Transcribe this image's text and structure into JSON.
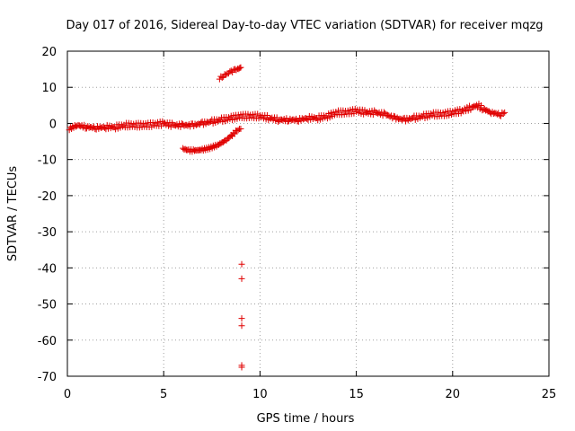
{
  "chart_data": {
    "type": "scatter",
    "title": "Day 017 of 2016, Sidereal Day-to-day VTEC variation (SDTVAR) for receiver mqzg",
    "xlabel": "GPS time / hours",
    "ylabel": "SDTVAR / TECUs",
    "xlim": [
      0,
      25
    ],
    "ylim": [
      -70,
      20
    ],
    "xticks": [
      0,
      5,
      10,
      15,
      20,
      25
    ],
    "yticks": [
      -70,
      -60,
      -50,
      -40,
      -30,
      -20,
      -10,
      0,
      10,
      20
    ],
    "xtick_labels": [
      "0",
      "5",
      "10",
      "15",
      "20",
      "25"
    ],
    "ytick_labels": [
      "-70",
      "-60",
      "-50",
      "-40",
      "-30",
      "-20",
      "-10",
      "0",
      "10",
      "20"
    ],
    "grid": true,
    "marker_color": "#e00000",
    "series": [
      {
        "name": "main-trace",
        "x": [
          0.1,
          0.5,
          1.0,
          1.5,
          2.0,
          2.5,
          3.0,
          3.5,
          4.0,
          4.5,
          5.0,
          5.5,
          6.0,
          6.5,
          7.0,
          7.5,
          8.0,
          8.5,
          9.0,
          9.5,
          10.0,
          10.5,
          11.0,
          11.5,
          12.0,
          12.5,
          13.0,
          13.5,
          14.0,
          14.5,
          15.0,
          15.5,
          16.0,
          16.5,
          17.0,
          17.5,
          18.0,
          18.5,
          19.0,
          19.5,
          20.0,
          20.5,
          21.0,
          21.3,
          21.6,
          22.0,
          22.5,
          22.7
        ],
        "y": [
          -1.5,
          -0.5,
          -1.0,
          -1.2,
          -1.0,
          -1.0,
          -0.5,
          -0.5,
          -0.5,
          -0.3,
          0.0,
          -0.5,
          -0.5,
          -0.5,
          0.0,
          0.5,
          1.0,
          1.5,
          2.0,
          2.0,
          2.0,
          1.5,
          1.0,
          1.0,
          1.0,
          1.5,
          1.5,
          2.0,
          3.0,
          3.0,
          3.5,
          3.0,
          3.0,
          2.5,
          1.5,
          1.0,
          1.5,
          2.0,
          2.5,
          2.5,
          3.0,
          3.5,
          4.5,
          5.0,
          4.0,
          3.0,
          2.5,
          3.0
        ]
      },
      {
        "name": "lower-arc",
        "x": [
          6.0,
          6.3,
          6.6,
          7.0,
          7.4,
          7.8,
          8.2,
          8.5,
          8.8,
          9.0
        ],
        "y": [
          -7.0,
          -7.5,
          -7.5,
          -7.3,
          -6.8,
          -6.0,
          -4.8,
          -3.5,
          -2.0,
          -1.5
        ]
      },
      {
        "name": "upper-arc",
        "x": [
          7.9,
          8.1,
          8.3,
          8.5,
          8.7,
          8.9,
          9.0
        ],
        "y": [
          12.5,
          13.2,
          13.8,
          14.3,
          14.8,
          15.2,
          15.5
        ]
      },
      {
        "name": "outliers",
        "x": [
          9.05,
          9.05,
          9.05,
          9.05,
          9.05,
          9.05
        ],
        "y": [
          -39.0,
          -43.0,
          -54.0,
          -56.0,
          -67.0,
          -67.5
        ]
      }
    ]
  }
}
